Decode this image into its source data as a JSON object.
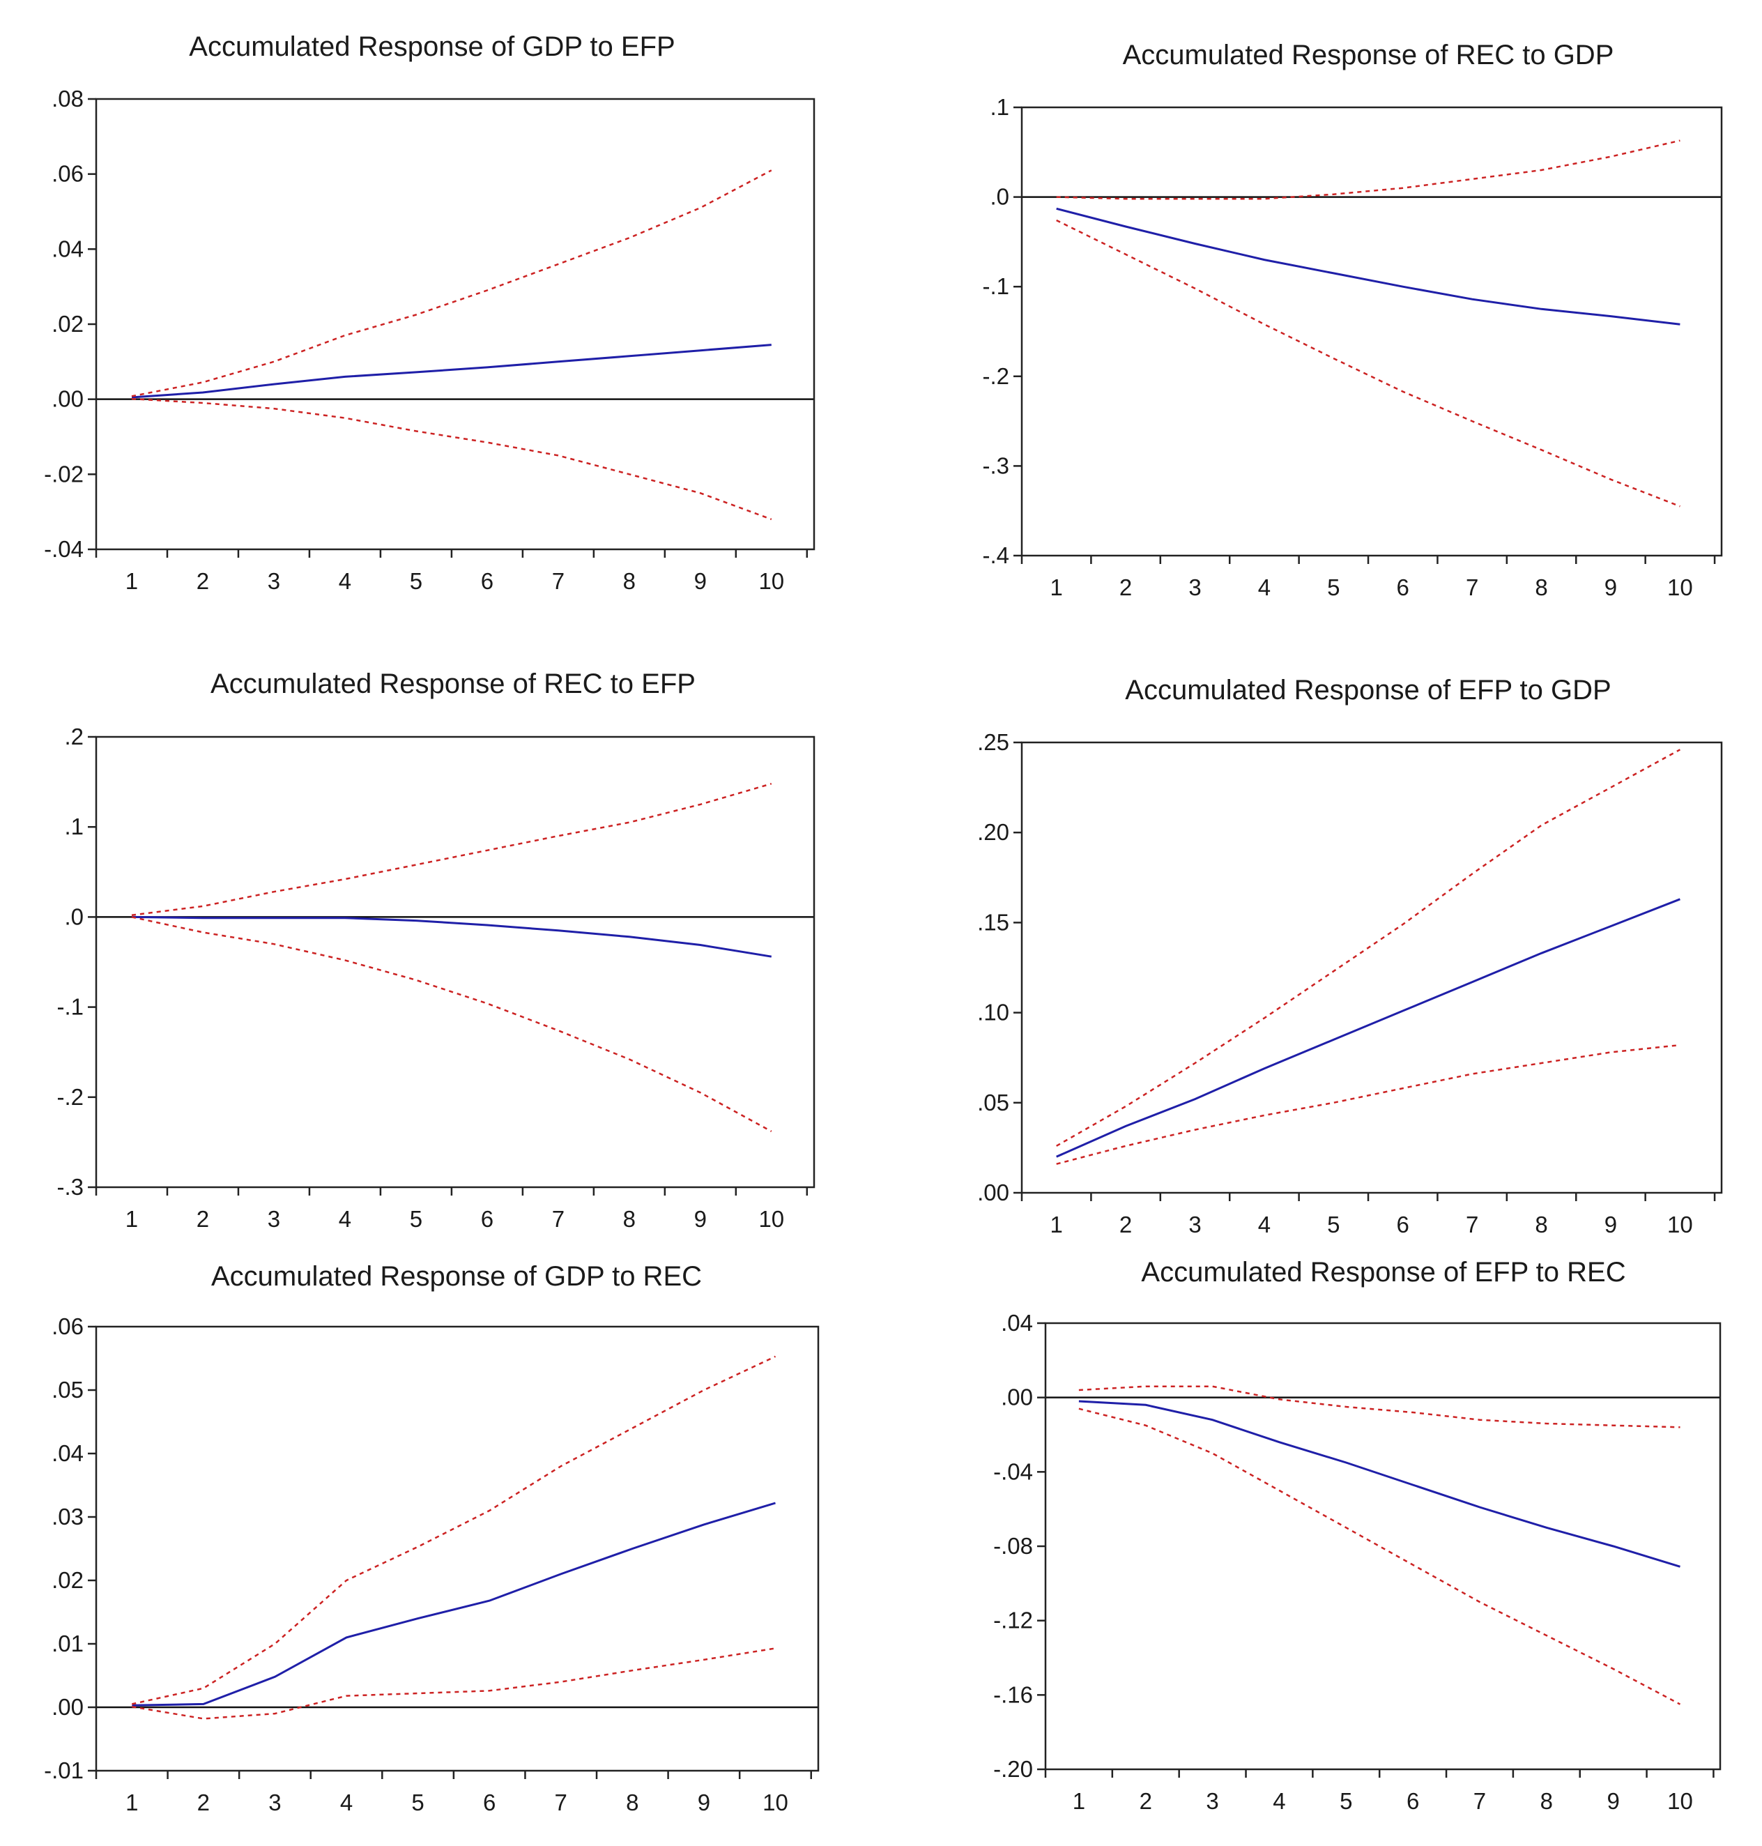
{
  "chart_data": [
    {
      "type": "line",
      "title": "Accumulated Response of GDP to EFP",
      "x": [
        1,
        2,
        3,
        4,
        5,
        6,
        7,
        8,
        9,
        10
      ],
      "x_ticks": [
        "1",
        "2",
        "3",
        "4",
        "5",
        "6",
        "7",
        "8",
        "9",
        "10"
      ],
      "ylim": [
        -0.04,
        0.08
      ],
      "y_ticks": [
        ".08",
        ".06",
        ".04",
        ".02",
        ".00",
        "-.02",
        "-.04"
      ],
      "y_tick_values": [
        0.08,
        0.06,
        0.04,
        0.02,
        0.0,
        -0.02,
        -0.04
      ],
      "series": [
        {
          "role": "response",
          "color": "#1f1fa8",
          "values": [
            0.0005,
            0.0018,
            0.004,
            0.006,
            0.0072,
            0.0085,
            0.01,
            0.0115,
            0.013,
            0.0145
          ]
        },
        {
          "role": "upper",
          "color": "#cc2222",
          "values": [
            0.0008,
            0.0045,
            0.01,
            0.017,
            0.0225,
            0.029,
            0.036,
            0.043,
            0.051,
            0.061
          ]
        },
        {
          "role": "lower",
          "color": "#cc2222",
          "values": [
            0.0001,
            -0.001,
            -0.0025,
            -0.005,
            -0.0085,
            -0.0115,
            -0.015,
            -0.02,
            -0.025,
            -0.032
          ]
        }
      ]
    },
    {
      "type": "line",
      "title": "Accumulated Response of REC to GDP",
      "x": [
        1,
        2,
        3,
        4,
        5,
        6,
        7,
        8,
        9,
        10
      ],
      "x_ticks": [
        "1",
        "2",
        "3",
        "4",
        "5",
        "6",
        "7",
        "8",
        "9",
        "10"
      ],
      "ylim": [
        -0.4,
        0.1
      ],
      "y_ticks": [
        ".1",
        ".0",
        "-.1",
        "-.2",
        "-.3",
        "-.4"
      ],
      "y_tick_values": [
        0.1,
        0.0,
        -0.1,
        -0.2,
        -0.3,
        -0.4
      ],
      "series": [
        {
          "role": "response",
          "color": "#1f1fa8",
          "values": [
            -0.013,
            -0.033,
            -0.052,
            -0.07,
            -0.085,
            -0.1,
            -0.114,
            -0.125,
            -0.133,
            -0.142
          ]
        },
        {
          "role": "upper",
          "color": "#cc2222",
          "values": [
            0.0,
            -0.002,
            -0.002,
            -0.002,
            0.003,
            0.01,
            0.02,
            0.03,
            0.045,
            0.063
          ]
        },
        {
          "role": "lower",
          "color": "#cc2222",
          "values": [
            -0.026,
            -0.064,
            -0.102,
            -0.142,
            -0.18,
            -0.217,
            -0.25,
            -0.282,
            -0.315,
            -0.345
          ]
        }
      ]
    },
    {
      "type": "line",
      "title": "Accumulated Response of REC to EFP",
      "x": [
        1,
        2,
        3,
        4,
        5,
        6,
        7,
        8,
        9,
        10
      ],
      "x_ticks": [
        "1",
        "2",
        "3",
        "4",
        "5",
        "6",
        "7",
        "8",
        "9",
        "10"
      ],
      "ylim": [
        -0.3,
        0.2
      ],
      "y_ticks": [
        ".2",
        ".1",
        ".0",
        "-.1",
        "-.2",
        "-.3"
      ],
      "y_tick_values": [
        0.2,
        0.1,
        0.0,
        -0.1,
        -0.2,
        -0.3
      ],
      "series": [
        {
          "role": "response",
          "color": "#1f1fa8",
          "values": [
            0.0,
            -0.001,
            -0.001,
            -0.001,
            -0.004,
            -0.009,
            -0.015,
            -0.022,
            -0.031,
            -0.044
          ]
        },
        {
          "role": "upper",
          "color": "#cc2222",
          "values": [
            0.002,
            0.012,
            0.028,
            0.042,
            0.058,
            0.074,
            0.09,
            0.105,
            0.125,
            0.148
          ]
        },
        {
          "role": "lower",
          "color": "#cc2222",
          "values": [
            0.0,
            -0.017,
            -0.03,
            -0.048,
            -0.07,
            -0.096,
            -0.126,
            -0.158,
            -0.195,
            -0.238
          ]
        }
      ]
    },
    {
      "type": "line",
      "title": "Accumulated Response of EFP to GDP",
      "x": [
        1,
        2,
        3,
        4,
        5,
        6,
        7,
        8,
        9,
        10
      ],
      "x_ticks": [
        "1",
        "2",
        "3",
        "4",
        "5",
        "6",
        "7",
        "8",
        "9",
        "10"
      ],
      "ylim": [
        0.0,
        0.25
      ],
      "y_ticks": [
        ".25",
        ".20",
        ".15",
        ".10",
        ".05",
        ".00"
      ],
      "y_tick_values": [
        0.25,
        0.2,
        0.15,
        0.1,
        0.05,
        0.0
      ],
      "series": [
        {
          "role": "response",
          "color": "#1f1fa8",
          "values": [
            0.02,
            0.037,
            0.052,
            0.069,
            0.085,
            0.101,
            0.117,
            0.133,
            0.148,
            0.163
          ]
        },
        {
          "role": "upper",
          "color": "#cc2222",
          "values": [
            0.026,
            0.048,
            0.072,
            0.097,
            0.123,
            0.149,
            0.177,
            0.204,
            0.225,
            0.246
          ]
        },
        {
          "role": "lower",
          "color": "#cc2222",
          "values": [
            0.016,
            0.026,
            0.035,
            0.043,
            0.05,
            0.058,
            0.066,
            0.072,
            0.078,
            0.082
          ]
        }
      ]
    },
    {
      "type": "line",
      "title": "Accumulated Response of GDP to REC",
      "x": [
        1,
        2,
        3,
        4,
        5,
        6,
        7,
        8,
        9,
        10
      ],
      "x_ticks": [
        "1",
        "2",
        "3",
        "4",
        "5",
        "6",
        "7",
        "8",
        "9",
        "10"
      ],
      "ylim": [
        -0.01,
        0.06
      ],
      "y_ticks": [
        ".06",
        ".05",
        ".04",
        ".03",
        ".02",
        ".01",
        ".00",
        "-.01"
      ],
      "y_tick_values": [
        0.06,
        0.05,
        0.04,
        0.03,
        0.02,
        0.01,
        0.0,
        -0.01
      ],
      "series": [
        {
          "role": "response",
          "color": "#1f1fa8",
          "values": [
            0.0003,
            0.0005,
            0.0048,
            0.011,
            0.014,
            0.0168,
            0.021,
            0.025,
            0.0288,
            0.0322
          ]
        },
        {
          "role": "upper",
          "color": "#cc2222",
          "values": [
            0.0005,
            0.003,
            0.01,
            0.02,
            0.0253,
            0.031,
            0.038,
            0.044,
            0.05,
            0.0553
          ]
        },
        {
          "role": "lower",
          "color": "#cc2222",
          "values": [
            0.0001,
            -0.0018,
            -0.001,
            0.0018,
            0.0022,
            0.0026,
            0.004,
            0.0058,
            0.0075,
            0.0093
          ]
        }
      ]
    },
    {
      "type": "line",
      "title": "Accumulated Response of EFP to REC",
      "x": [
        1,
        2,
        3,
        4,
        5,
        6,
        7,
        8,
        9,
        10
      ],
      "x_ticks": [
        "1",
        "2",
        "3",
        "4",
        "5",
        "6",
        "7",
        "8",
        "9",
        "10"
      ],
      "ylim": [
        -0.2,
        0.04
      ],
      "y_ticks": [
        ".04",
        ".00",
        "-.04",
        "-.08",
        "-.12",
        "-.16",
        "-.20"
      ],
      "y_tick_values": [
        0.04,
        0.0,
        -0.04,
        -0.08,
        -0.12,
        -0.16,
        -0.2
      ],
      "series": [
        {
          "role": "response",
          "color": "#1f1fa8",
          "values": [
            -0.002,
            -0.004,
            -0.012,
            -0.024,
            -0.035,
            -0.047,
            -0.059,
            -0.07,
            -0.08,
            -0.091
          ]
        },
        {
          "role": "upper",
          "color": "#cc2222",
          "values": [
            0.004,
            0.006,
            0.006,
            -0.001,
            -0.005,
            -0.008,
            -0.012,
            -0.014,
            -0.015,
            -0.016
          ]
        },
        {
          "role": "lower",
          "color": "#cc2222",
          "values": [
            -0.006,
            -0.015,
            -0.03,
            -0.05,
            -0.07,
            -0.09,
            -0.11,
            -0.128,
            -0.146,
            -0.165
          ]
        }
      ]
    }
  ]
}
